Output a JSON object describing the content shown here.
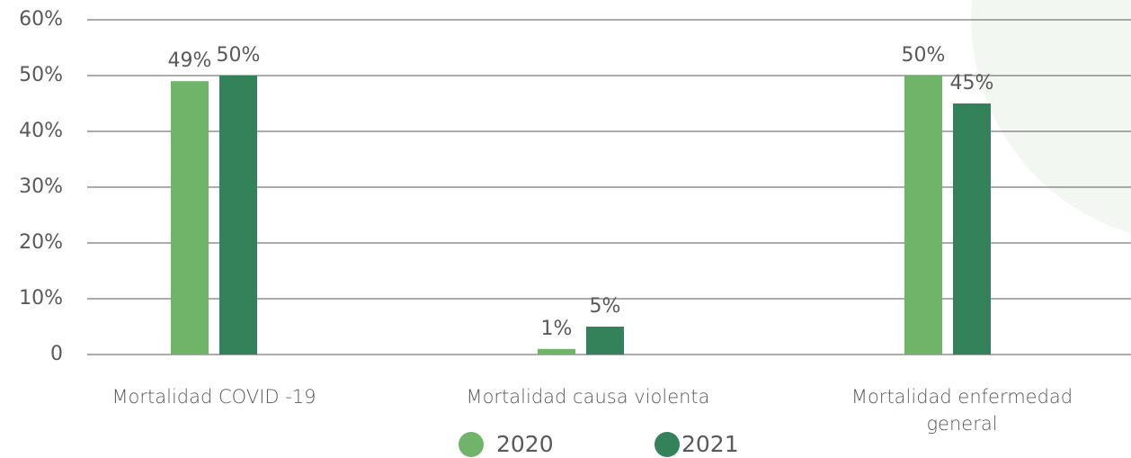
{
  "chart_data": {
    "type": "bar",
    "categories": [
      "Mortalidad COVID -19",
      "Mortalidad causa violenta",
      "Mortalidad enfermedad general"
    ],
    "series": [
      {
        "name": "2020",
        "color": "#70b46a",
        "values": [
          49,
          1,
          50
        ],
        "value_labels": [
          "49%",
          "1%",
          "50%"
        ]
      },
      {
        "name": "2021",
        "color": "#33825a",
        "values": [
          50,
          5,
          45
        ],
        "value_labels": [
          "50%",
          "5%",
          "45%"
        ]
      }
    ],
    "ylim": [
      0,
      60
    ],
    "yticks": [
      0,
      {
        "value": 10,
        "label": "10%"
      },
      {
        "value": 20,
        "label": "20%"
      },
      {
        "value": 30,
        "label": "30%"
      },
      {
        "value": 40,
        "label": "40%"
      },
      {
        "value": 50,
        "label": "50%"
      },
      {
        "value": 60,
        "label": "60%"
      }
    ],
    "grid": true,
    "legend": "bottom"
  }
}
